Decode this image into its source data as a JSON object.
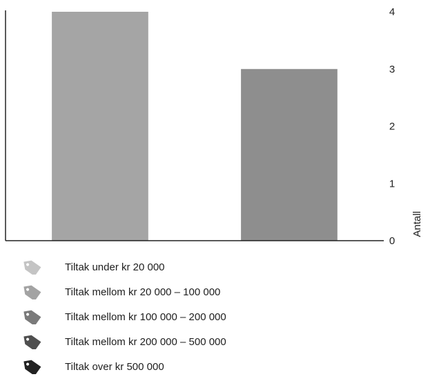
{
  "chart_data": {
    "type": "bar",
    "categories": [
      "",
      ""
    ],
    "values": [
      4,
      3
    ],
    "colors": [
      "#a5a5a5",
      "#8e8e8e"
    ],
    "ylabel": "Antall",
    "ylim": [
      0,
      4
    ],
    "yticks": [
      "0",
      "1",
      "2",
      "3",
      "4"
    ],
    "y_axis_side": "right",
    "grid": false
  },
  "legend": [
    {
      "label": "Tiltak under kr 20 000",
      "color": "#c4c4c4",
      "icon": "price-tag-icon"
    },
    {
      "label": "Tiltak mellom kr 20 000 – 100 000",
      "color": "#a3a3a3",
      "icon": "price-tag-icon"
    },
    {
      "label": "Tiltak mellom kr 100 000 – 200 000",
      "color": "#7a7a7a",
      "icon": "price-tag-icon"
    },
    {
      "label": "Tiltak mellom kr 200 000 – 500 000",
      "color": "#4f4f4f",
      "icon": "price-tag-icon"
    },
    {
      "label": "Tiltak over kr 500 000",
      "color": "#222222",
      "icon": "price-tag-icon"
    }
  ]
}
